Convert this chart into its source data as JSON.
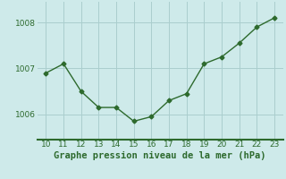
{
  "x": [
    10,
    11,
    12,
    13,
    14,
    15,
    16,
    17,
    18,
    19,
    20,
    21,
    22,
    23
  ],
  "y": [
    1006.9,
    1007.1,
    1006.5,
    1006.15,
    1006.15,
    1005.85,
    1005.95,
    1006.3,
    1006.45,
    1007.1,
    1007.25,
    1007.55,
    1007.9,
    1008.1
  ],
  "line_color": "#2d6a2d",
  "marker": "D",
  "marker_size": 2.5,
  "line_width": 1.0,
  "bg_color": "#ceeaea",
  "grid_color": "#aacece",
  "xlabel": "Graphe pression niveau de la mer (hPa)",
  "xlabel_color": "#2d6a2d",
  "xlabel_fontsize": 7.5,
  "tick_color": "#2d6a2d",
  "tick_fontsize": 6.5,
  "yticks": [
    1006,
    1007,
    1008
  ],
  "ylim": [
    1005.45,
    1008.45
  ],
  "xlim": [
    9.5,
    23.5
  ],
  "xticks": [
    10,
    11,
    12,
    13,
    14,
    15,
    16,
    17,
    18,
    19,
    20,
    21,
    22,
    23
  ],
  "border_color": "#2d6a2d",
  "border_linewidth": 1.5
}
